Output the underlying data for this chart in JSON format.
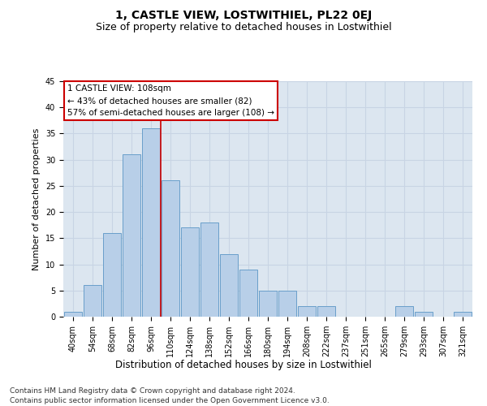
{
  "title": "1, CASTLE VIEW, LOSTWITHIEL, PL22 0EJ",
  "subtitle": "Size of property relative to detached houses in Lostwithiel",
  "xlabel": "Distribution of detached houses by size in Lostwithiel",
  "ylabel": "Number of detached properties",
  "categories": [
    "40sqm",
    "54sqm",
    "68sqm",
    "82sqm",
    "96sqm",
    "110sqm",
    "124sqm",
    "138sqm",
    "152sqm",
    "166sqm",
    "180sqm",
    "194sqm",
    "208sqm",
    "222sqm",
    "237sqm",
    "251sqm",
    "265sqm",
    "279sqm",
    "293sqm",
    "307sqm",
    "321sqm"
  ],
  "values": [
    1,
    6,
    16,
    31,
    36,
    26,
    17,
    18,
    12,
    9,
    5,
    5,
    2,
    2,
    0,
    0,
    0,
    2,
    1,
    0,
    1
  ],
  "bar_color": "#b8cfe8",
  "bar_edge_color": "#6a9fca",
  "grid_color": "#c8d4e4",
  "background_color": "#dce6f0",
  "marker_line_color": "#cc0000",
  "annotation_line1": "1 CASTLE VIEW: 108sqm",
  "annotation_line2": "← 43% of detached houses are smaller (82)",
  "annotation_line3": "57% of semi-detached houses are larger (108) →",
  "annotation_box_color": "#ffffff",
  "annotation_box_edge": "#cc0000",
  "ylim": [
    0,
    45
  ],
  "yticks": [
    0,
    5,
    10,
    15,
    20,
    25,
    30,
    35,
    40,
    45
  ],
  "footer_line1": "Contains HM Land Registry data © Crown copyright and database right 2024.",
  "footer_line2": "Contains public sector information licensed under the Open Government Licence v3.0.",
  "title_fontsize": 10,
  "subtitle_fontsize": 9,
  "tick_fontsize": 7,
  "ylabel_fontsize": 8,
  "xlabel_fontsize": 8.5,
  "footer_fontsize": 6.5,
  "annotation_fontsize": 7.5
}
